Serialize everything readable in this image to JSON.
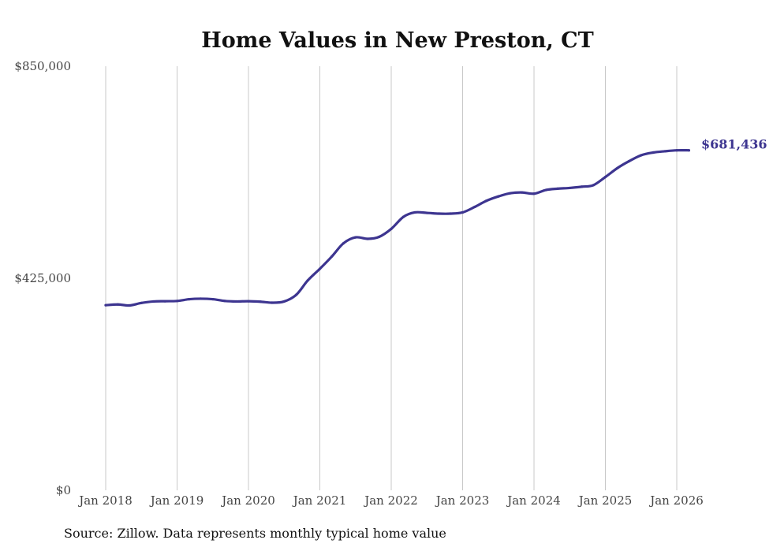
{
  "chart_data": {
    "type": "line",
    "title": "Home Values in New Preston, CT",
    "xlabel": "",
    "ylabel": "",
    "y_ticks": [
      {
        "value": 0,
        "label": "$0"
      },
      {
        "value": 425000,
        "label": "$425,000"
      },
      {
        "value": 850000,
        "label": "$850,000"
      }
    ],
    "ylim": [
      0,
      850000
    ],
    "x_ticks": [
      {
        "value": 2018,
        "label": "Jan 2018"
      },
      {
        "value": 2019,
        "label": "Jan 2019"
      },
      {
        "value": 2020,
        "label": "Jan 2020"
      },
      {
        "value": 2021,
        "label": "Jan 2021"
      },
      {
        "value": 2022,
        "label": "Jan 2022"
      },
      {
        "value": 2023,
        "label": "Jan 2023"
      },
      {
        "value": 2024,
        "label": "Jan 2024"
      },
      {
        "value": 2025,
        "label": "Jan 2025"
      },
      {
        "value": 2026,
        "label": "Jan 2026"
      }
    ],
    "xlim": [
      2017.5,
      2026.9
    ],
    "grid": "vertical",
    "series": [
      {
        "name": "Typical home value",
        "color": "#3d3590",
        "x": [
          2018.0,
          2018.17,
          2018.33,
          2018.5,
          2018.67,
          2018.83,
          2019.0,
          2019.17,
          2019.33,
          2019.5,
          2019.67,
          2019.83,
          2020.0,
          2020.17,
          2020.33,
          2020.5,
          2020.67,
          2020.83,
          2021.0,
          2021.17,
          2021.33,
          2021.5,
          2021.67,
          2021.83,
          2022.0,
          2022.17,
          2022.33,
          2022.5,
          2022.67,
          2022.83,
          2023.0,
          2023.17,
          2023.33,
          2023.5,
          2023.67,
          2023.83,
          2024.0,
          2024.17,
          2024.33,
          2024.5,
          2024.67,
          2024.83,
          2025.0,
          2025.17,
          2025.33,
          2025.5,
          2025.67,
          2025.83,
          2026.0,
          2026.17
        ],
        "values": [
          371000,
          372500,
          370500,
          375500,
          378500,
          379000,
          379500,
          383000,
          384000,
          383000,
          379500,
          378500,
          379000,
          378000,
          376000,
          378500,
          392000,
          420500,
          444000,
          469000,
          495000,
          507000,
          504000,
          508000,
          524000,
          548000,
          557000,
          556000,
          554500,
          554500,
          557000,
          568000,
          580000,
          589000,
          595500,
          597000,
          594500,
          602000,
          604500,
          606000,
          608500,
          611500,
          628000,
          646000,
          659500,
          671500,
          677000,
          679500,
          681436,
          681436
        ]
      }
    ],
    "end_label": "$681,436"
  },
  "source_text": "Source: Zillow. Data represents monthly typical home value"
}
